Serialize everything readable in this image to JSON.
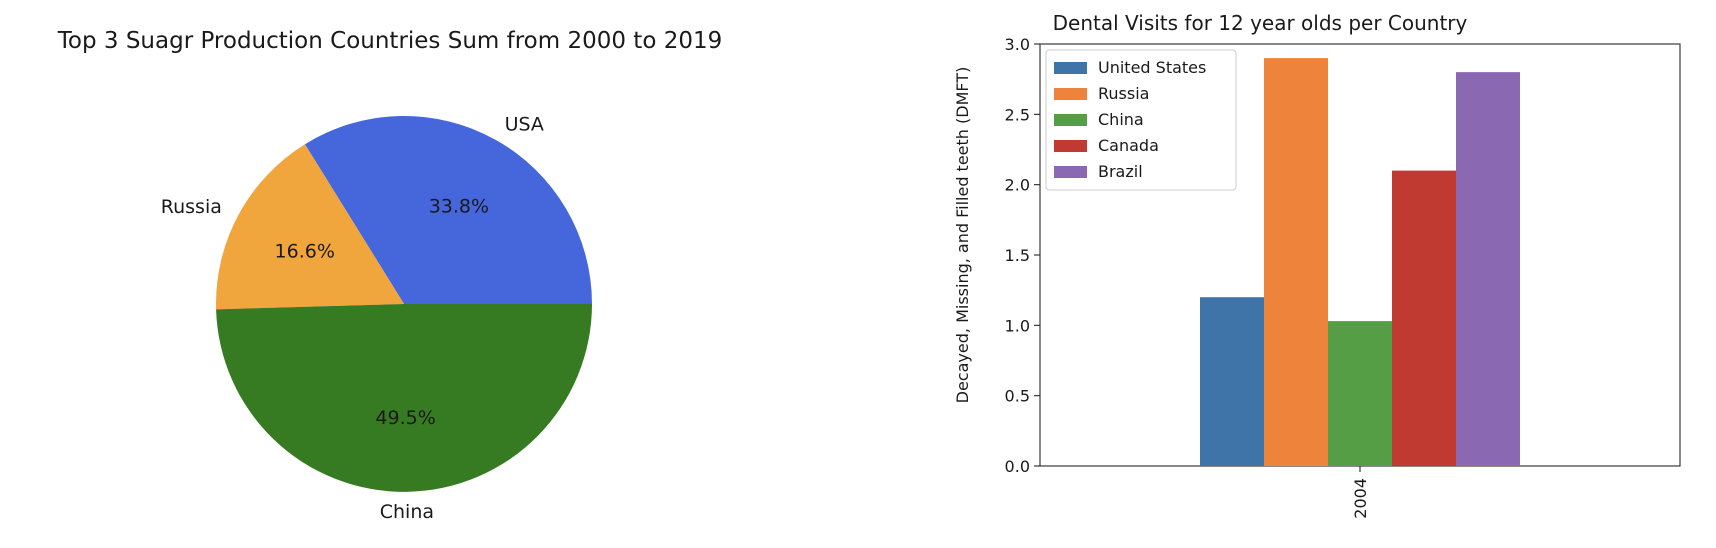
{
  "chart_data": [
    {
      "type": "pie",
      "title": "Top 3 Suagr Production Countries Sum from 2000 to 2019",
      "slices": [
        {
          "label": "USA",
          "percent": 33.8,
          "pct_label": "33.8%",
          "color": "#4567db"
        },
        {
          "label": "Russia",
          "percent": 16.6,
          "pct_label": "16.6%",
          "color": "#f0a63c"
        },
        {
          "label": "China",
          "percent": 49.5,
          "pct_label": "49.5%",
          "color": "#367a22"
        }
      ],
      "start_angle_deg": 0,
      "direction": "counterclockwise",
      "legend": "none"
    },
    {
      "type": "bar",
      "title": "Dental Visits for 12 year olds per Country",
      "categories": [
        "2004"
      ],
      "series": [
        {
          "name": "United States",
          "values": [
            1.2
          ],
          "color": "#3f74a8"
        },
        {
          "name": "Russia",
          "values": [
            2.9
          ],
          "color": "#ee843b"
        },
        {
          "name": "China",
          "values": [
            1.03
          ],
          "color": "#559e45"
        },
        {
          "name": "Canada",
          "values": [
            2.1
          ],
          "color": "#c13a31"
        },
        {
          "name": "Brazil",
          "values": [
            2.8
          ],
          "color": "#8a69b2"
        }
      ],
      "xlabel": "",
      "ylabel": "Decayed, Missing, and Filled teeth (DMFT)",
      "ylim": [
        0,
        3.0
      ],
      "yticks": [
        "0.0",
        "0.5",
        "1.0",
        "1.5",
        "2.0",
        "2.5",
        "3.0"
      ],
      "grid": false,
      "legend": "top-left"
    }
  ]
}
